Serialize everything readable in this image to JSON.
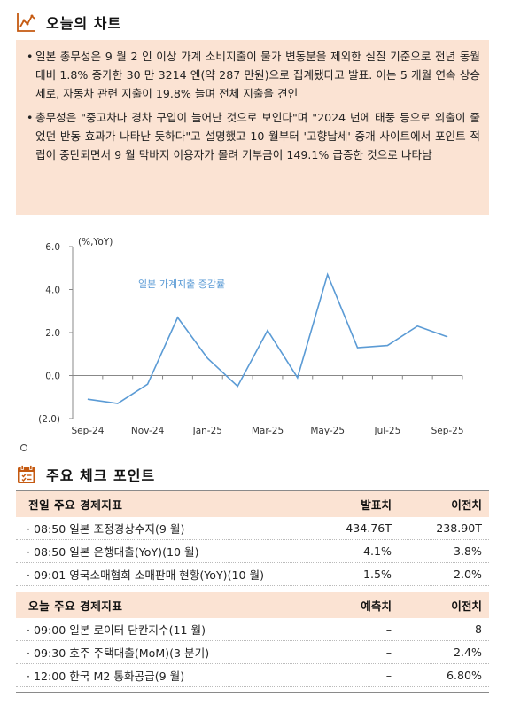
{
  "section1": {
    "title": "오늘의 차트",
    "icon": "chart-line-icon",
    "bullets": [
      "일본 총무성은 9 월 2 인 이상 가계 소비지출이 물가 변동분을 제외한 실질 기준으로 전년 동월 대비 1.8% 증가한 30 만 3214 엔(약 287 만원)으로 집계됐다고 발표. 이는 5 개월 연속 상승세로, 자동차 관련 지출이 19.8% 늘며 전체 지출을 견인",
      "총무성은 \"중고차나 경차 구입이 늘어난 것으로 보인다\"며 \"2024 년에 태풍 등으로 외출이 줄었던 반동 효과가 나타난 듯하다\"고 설명했고 10 월부터 '고향납세' 중개 사이트에서 포인트 적립이 중단되면서 9 월 막바지 이용자가 몰려 기부금이 149.1% 급증한 것으로 나타남"
    ]
  },
  "chart_data": {
    "type": "line",
    "unit_label": "(%,YoY)",
    "series": [
      {
        "name": "일본 가계지출 증감률",
        "values": [
          -1.1,
          -1.3,
          -0.4,
          2.7,
          0.8,
          -0.5,
          2.1,
          -0.1,
          4.7,
          1.3,
          1.4,
          2.3,
          1.8
        ]
      }
    ],
    "x": [
      "Sep-24",
      "Oct-24",
      "Nov-24",
      "Dec-24",
      "Jan-25",
      "Feb-25",
      "Mar-25",
      "Apr-25",
      "May-25",
      "Jun-25",
      "Jul-25",
      "Aug-25",
      "Sep-25"
    ],
    "x_tick_labels": [
      "Sep-24",
      "Nov-24",
      "Jan-25",
      "Mar-25",
      "May-25",
      "Jul-25",
      "Sep-25"
    ],
    "y_tick_labels": [
      "6.0",
      "4.0",
      "2.0",
      "0.0",
      "(2.0)"
    ],
    "ylim": [
      -2,
      6
    ],
    "line_color": "#5b9bd5"
  },
  "section2": {
    "title": "주요 체크 포인트",
    "icon": "calendar-check-icon",
    "prev_table": {
      "headers": [
        "전일 주요 경제지표",
        "발표치",
        "이전치"
      ],
      "rows": [
        [
          "08:50 일본 조정경상수지(9 월)",
          "434.76T",
          "238.90T"
        ],
        [
          "08:50 일본 은행대출(YoY)(10 월)",
          "4.1%",
          "3.8%"
        ],
        [
          "09:01 영국소매협회 소매판매 현황(YoY)(10 월)",
          "1.5%",
          "2.0%"
        ]
      ]
    },
    "today_table": {
      "headers": [
        "오늘 주요 경제지표",
        "예측치",
        "이전치"
      ],
      "rows": [
        [
          "09:00 일본 로이터 단칸지수(11 월)",
          "–",
          "8"
        ],
        [
          "09:30 호주 주택대출(MoM)(3 분기)",
          "–",
          "2.4%"
        ],
        [
          "12:00 한국 M2 통화공급(9 월)",
          "–",
          "6.80%"
        ]
      ]
    }
  },
  "colors": {
    "accent": "#c55a11",
    "box_fill": "#fbe3d3"
  }
}
